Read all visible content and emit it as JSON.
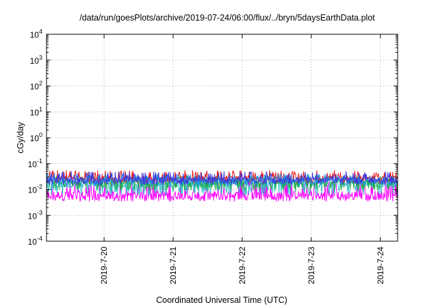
{
  "chart_data": {
    "type": "line",
    "title": "/data/run/goesPlots/archive/2019-07-24/06:00/flux/../bryn/5daysEarthData.plot",
    "xlabel": "Coordinated Universal Time (UTC)",
    "ylabel": "cGy/day",
    "yscale": "log",
    "ylim": [
      0.0001,
      10000
    ],
    "yticks": [
      {
        "base": "10",
        "exp": "-4",
        "value": 0.0001
      },
      {
        "base": "10",
        "exp": "-3",
        "value": 0.001
      },
      {
        "base": "10",
        "exp": "-2",
        "value": 0.01
      },
      {
        "base": "10",
        "exp": "-1",
        "value": 0.1
      },
      {
        "base": "10",
        "exp": "0",
        "value": 1
      },
      {
        "base": "10",
        "exp": "1",
        "value": 10
      },
      {
        "base": "10",
        "exp": "2",
        "value": 100
      },
      {
        "base": "10",
        "exp": "3",
        "value": 1000
      },
      {
        "base": "10",
        "exp": "4",
        "value": 10000
      }
    ],
    "xlim": [
      "2019-07-19T04:00",
      "2019-07-24T06:00"
    ],
    "xticks": [
      {
        "label": "2019-7-20",
        "date": "2019-07-20"
      },
      {
        "label": "2019-7-21",
        "date": "2019-07-21"
      },
      {
        "label": "2019-7-22",
        "date": "2019-07-22"
      },
      {
        "label": "2019-7-23",
        "date": "2019-07-23"
      },
      {
        "label": "2019-7-24",
        "date": "2019-07-24"
      }
    ],
    "grid": true,
    "series": [
      {
        "color": "#e8191c",
        "base": 0.028,
        "low": 0.018,
        "high": 0.055
      },
      {
        "color": "#2fc0c8",
        "base": 0.015,
        "low": 0.006,
        "high": 0.025
      },
      {
        "color": "#20b040",
        "base": 0.02,
        "low": 0.009,
        "high": 0.035
      },
      {
        "color": "#3a3ae0",
        "base": 0.025,
        "low": 0.015,
        "high": 0.05
      },
      {
        "color": "#ff00ff",
        "base": 0.006,
        "low": 0.0035,
        "high": 0.03
      },
      {
        "color": "#1e90e0",
        "base": 0.023,
        "low": 0.014,
        "high": 0.04
      }
    ]
  }
}
